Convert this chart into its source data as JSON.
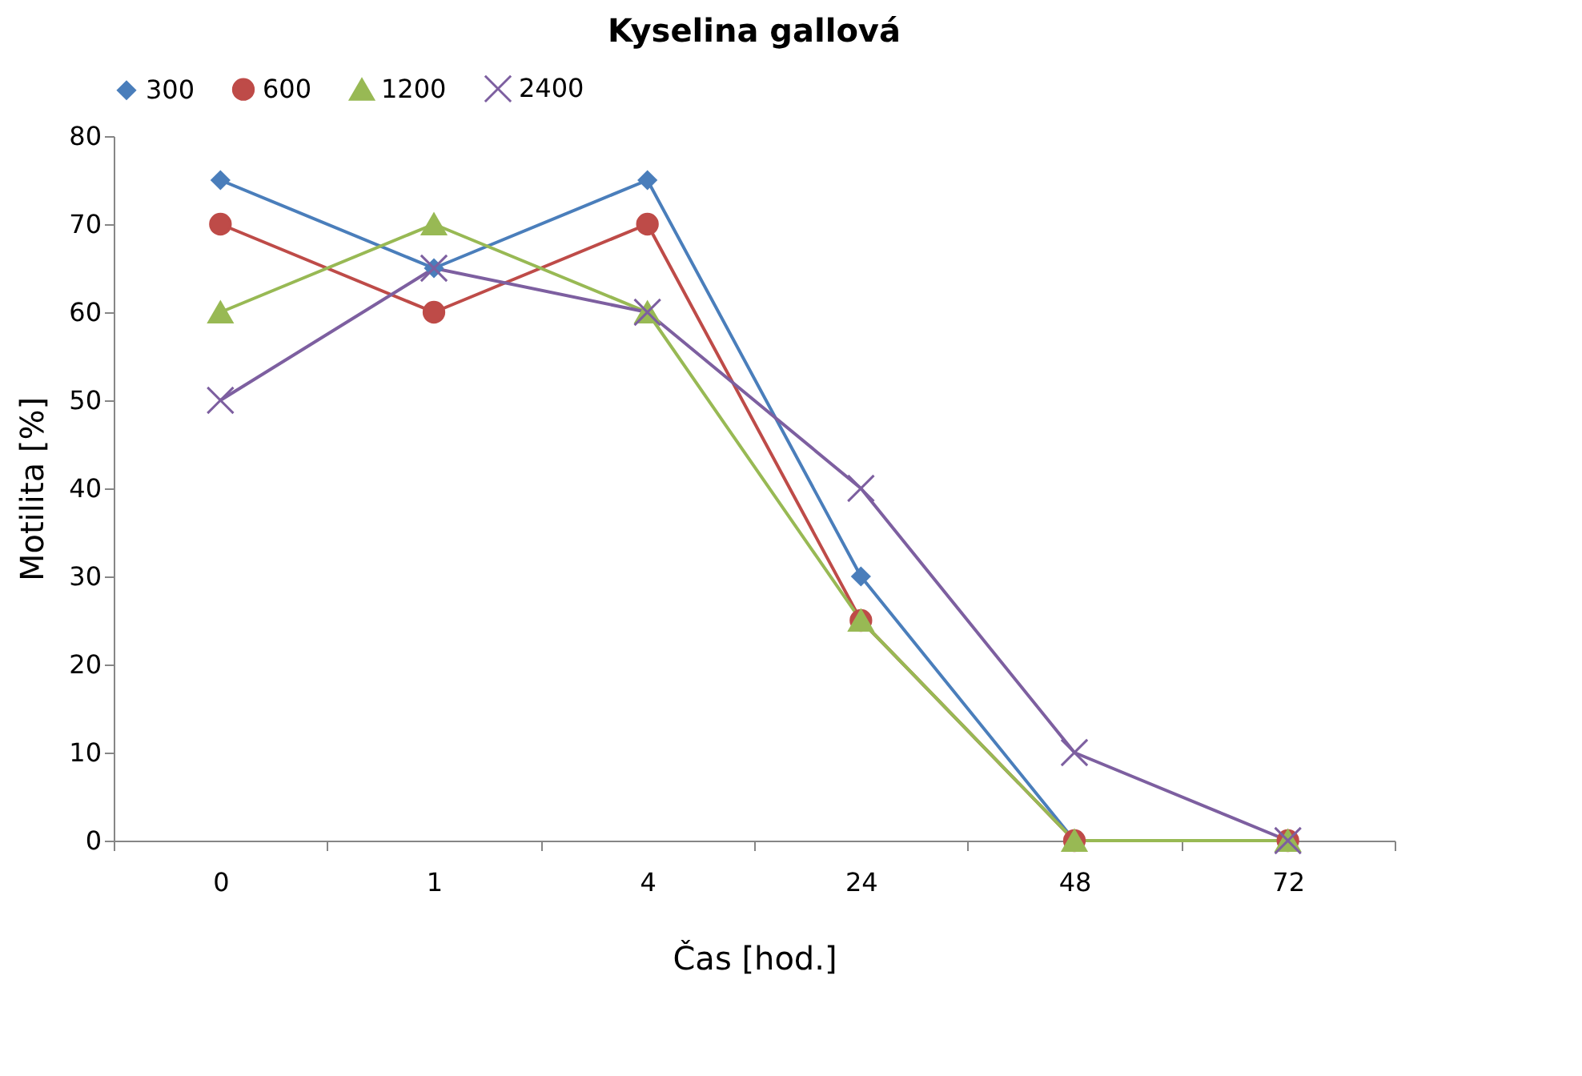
{
  "chart_data": {
    "type": "line",
    "title": "Kyselina gallová",
    "xlabel": "Čas [hod.]",
    "ylabel": "Motilita [%]",
    "categories": [
      "0",
      "1",
      "4",
      "24",
      "48",
      "72"
    ],
    "series": [
      {
        "name": "300",
        "color": "#4a7ebb",
        "marker": "diamond",
        "values": [
          75,
          65,
          75,
          30,
          0,
          0
        ]
      },
      {
        "name": "600",
        "color": "#be4b48",
        "marker": "circle",
        "values": [
          70,
          60,
          70,
          25,
          0,
          0
        ]
      },
      {
        "name": "1200",
        "color": "#98b954",
        "marker": "triangle",
        "values": [
          60,
          70,
          60,
          25,
          0,
          0
        ]
      },
      {
        "name": "2400",
        "color": "#7d5fa0",
        "marker": "cross",
        "values": [
          50,
          65,
          60,
          40,
          10,
          0
        ]
      }
    ],
    "ylim": [
      0,
      80
    ],
    "yticks": [
      0,
      10,
      20,
      30,
      40,
      50,
      60,
      70,
      80
    ],
    "grid": false,
    "legend": "top",
    "line_style": "solid"
  }
}
